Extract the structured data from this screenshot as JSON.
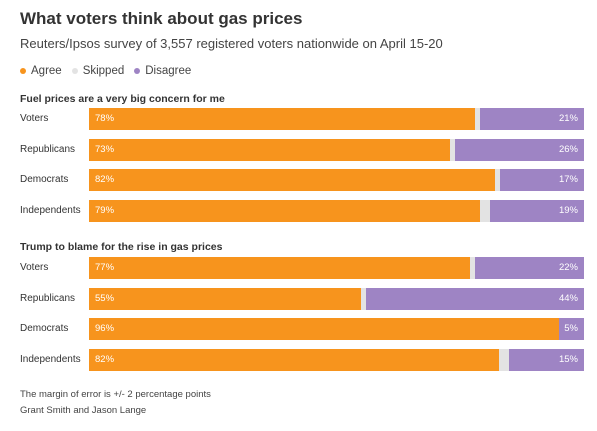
{
  "title": "What voters think about gas prices",
  "subtitle": "Reuters/Ipsos survey of 3,557 registered voters nationwide on April 15-20",
  "legend": [
    {
      "label": "Agree",
      "color": "#f7941d"
    },
    {
      "label": "Skipped",
      "color": "#e3e3e3"
    },
    {
      "label": "Disagree",
      "color": "#9e84c4"
    }
  ],
  "footer": {
    "note": "The margin of error is +/- 2 percentage points",
    "credit": "Grant Smith and Jason Lange"
  },
  "chart_data": [
    {
      "type": "bar",
      "stacked": true,
      "orientation": "horizontal",
      "title": "Fuel prices are a very big concern for me",
      "categories": [
        "Voters",
        "Republicans",
        "Democrats",
        "Independents"
      ],
      "series": [
        {
          "name": "Agree",
          "values": [
            78,
            73,
            82,
            79
          ],
          "color": "#f7941d"
        },
        {
          "name": "Skipped",
          "values": [
            1,
            1,
            1,
            2
          ],
          "color": "#e3e3e3"
        },
        {
          "name": "Disagree",
          "values": [
            21,
            26,
            17,
            19
          ],
          "color": "#9e84c4"
        }
      ],
      "labels": {
        "Agree": [
          "78%",
          "73%",
          "82%",
          "79%"
        ],
        "Disagree": [
          "21%",
          "26%",
          "17%",
          "19%"
        ]
      }
    },
    {
      "type": "bar",
      "stacked": true,
      "orientation": "horizontal",
      "title": "Trump to blame for the rise in gas prices",
      "categories": [
        "Voters",
        "Republicans",
        "Democrats",
        "Independents"
      ],
      "series": [
        {
          "name": "Agree",
          "values": [
            77,
            55,
            96,
            82
          ],
          "color": "#f7941d"
        },
        {
          "name": "Skipped",
          "values": [
            1,
            1,
            0,
            2
          ],
          "color": "#e3e3e3"
        },
        {
          "name": "Disagree",
          "values": [
            22,
            44,
            5,
            15
          ],
          "color": "#9e84c4"
        }
      ],
      "labels": {
        "Agree": [
          "77%",
          "55%",
          "96%",
          "82%"
        ],
        "Disagree": [
          "22%",
          "44%",
          "5%",
          "15%"
        ]
      }
    }
  ]
}
